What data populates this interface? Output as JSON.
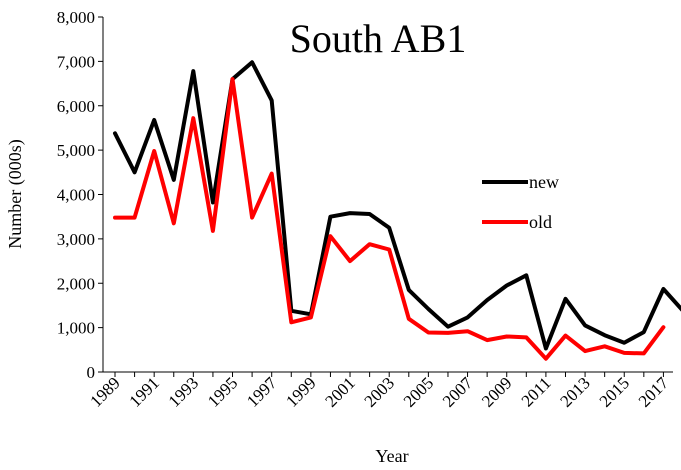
{
  "chart_data": {
    "type": "line",
    "title": "South AB1",
    "xlabel": "Year",
    "ylabel": "Number (000s)",
    "ylim": [
      0,
      8000
    ],
    "yticks": [
      "0",
      "1,000",
      "2,000",
      "3,000",
      "4,000",
      "5,000",
      "6,000",
      "7,000",
      "8,000"
    ],
    "xlim": [
      1989,
      2018
    ],
    "xticks": [
      "1989",
      "1991",
      "1993",
      "1995",
      "1997",
      "1999",
      "2001",
      "2003",
      "2005",
      "2007",
      "2009",
      "2011",
      "2013",
      "2015",
      "2017"
    ],
    "grid": false,
    "legend_position": "right",
    "series": [
      {
        "name": "new",
        "color": "#000000",
        "x": [
          1989,
          1990,
          1991,
          1992,
          1993,
          1994,
          1995,
          1996,
          1997,
          1998,
          1999,
          2000,
          2001,
          2002,
          2003,
          2004,
          2005,
          2006,
          2007,
          2008,
          2009,
          2010,
          2011,
          2012,
          2013,
          2014,
          2015,
          2016,
          2017,
          2018
        ],
        "values": [
          5380,
          4500,
          5680,
          4330,
          6780,
          3820,
          6600,
          6980,
          6120,
          1380,
          1300,
          3500,
          3580,
          3560,
          3250,
          1850,
          1420,
          1020,
          1230,
          1620,
          1950,
          2180,
          530,
          1650,
          1050,
          830,
          660,
          900,
          1870,
          1380
        ]
      },
      {
        "name": "old",
        "color": "#ff0000",
        "x": [
          1989,
          1990,
          1991,
          1992,
          1993,
          1994,
          1995,
          1996,
          1997,
          1998,
          1999,
          2000,
          2001,
          2002,
          2003,
          2004,
          2005,
          2006,
          2007,
          2008,
          2009,
          2010,
          2011,
          2012,
          2013,
          2014,
          2015,
          2016,
          2017
        ],
        "values": [
          3480,
          3480,
          4980,
          3350,
          5720,
          3180,
          6600,
          3480,
          4470,
          1120,
          1230,
          3060,
          2500,
          2880,
          2760,
          1200,
          890,
          880,
          920,
          720,
          800,
          780,
          300,
          820,
          470,
          580,
          430,
          420,
          1010
        ]
      }
    ]
  }
}
